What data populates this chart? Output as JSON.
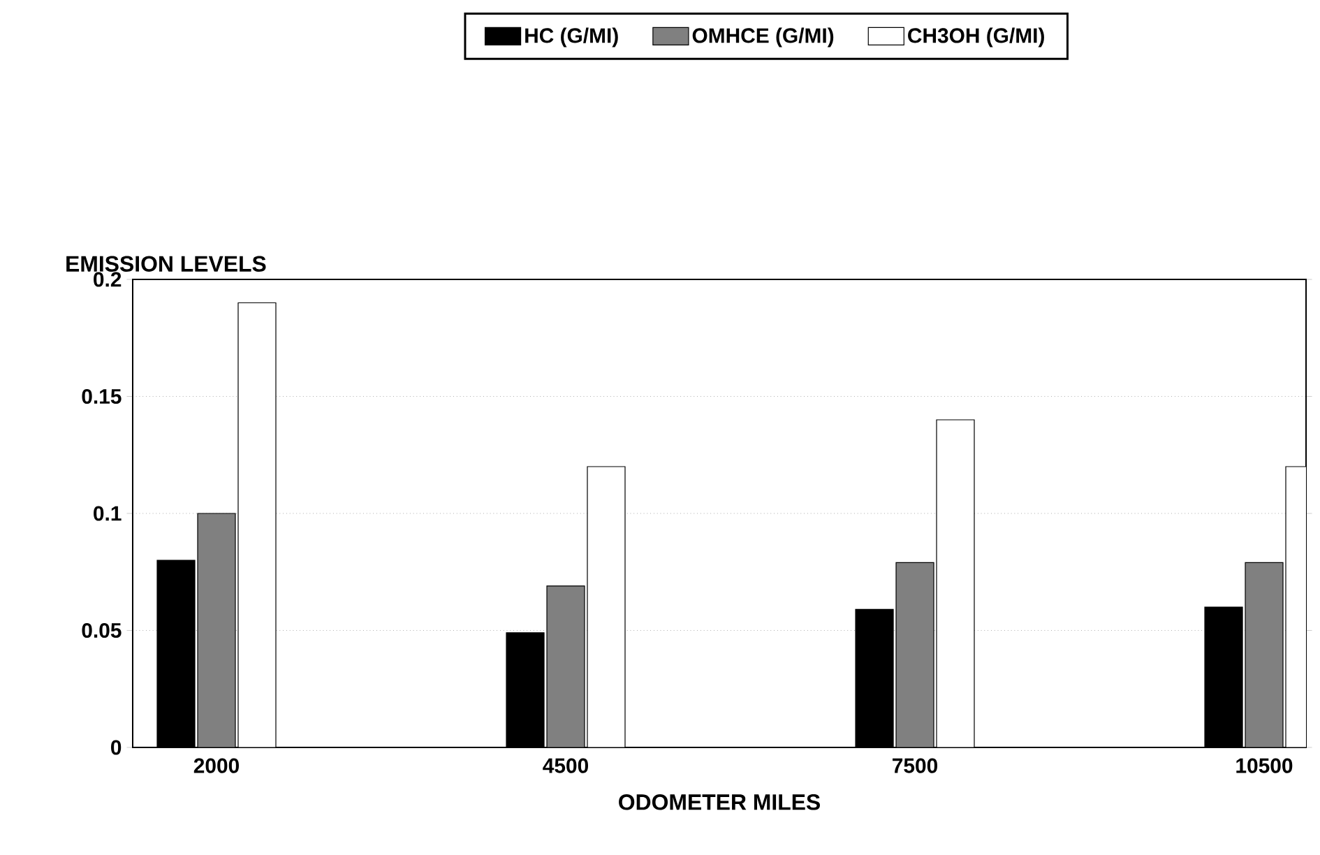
{
  "chart_data": {
    "type": "bar",
    "ylabel": "EMISSION LEVELS",
    "xlabel": "ODOMETER MILES",
    "categories": [
      "2000",
      "4500",
      "7500",
      "10500"
    ],
    "series": [
      {
        "name": "HC (G/MI)",
        "color": "#000000",
        "values": [
          0.08,
          0.049,
          0.059,
          0.06
        ]
      },
      {
        "name": "OMHCE (G/MI)",
        "color": "#808080",
        "values": [
          0.1,
          0.069,
          0.079,
          0.079
        ]
      },
      {
        "name": "CH3OH (G/MI)",
        "color": "#ffffff",
        "values": [
          0.19,
          0.12,
          0.14,
          0.12
        ]
      }
    ],
    "ylim": [
      0,
      0.2
    ],
    "yticks": [
      0,
      0.05,
      0.1,
      0.15,
      0.2
    ],
    "grid": "y",
    "legend": "top"
  }
}
